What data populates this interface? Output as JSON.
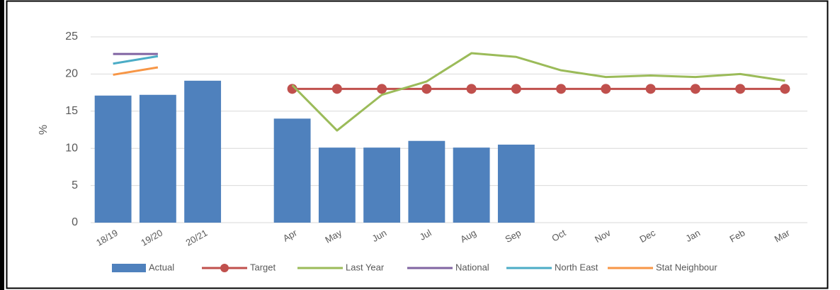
{
  "chart_data": {
    "type": "bar",
    "y_label": "%",
    "categories": [
      "18/19",
      "19/20",
      "20/21",
      null,
      "Apr",
      "May",
      "Jun",
      "Jul",
      "Aug",
      "Sep",
      "Oct",
      "Nov",
      "Dec",
      "Jan",
      "Feb",
      "Mar"
    ],
    "ylim": [
      0,
      25
    ],
    "yticks": [
      0,
      5,
      10,
      15,
      20,
      25
    ],
    "grid": true,
    "legend": "bottom",
    "series": [
      {
        "name": "Actual",
        "type": "bar",
        "color": "#4f81bd",
        "values": [
          17.1,
          17.2,
          19.1,
          null,
          14.0,
          10.1,
          10.1,
          11.0,
          10.1,
          10.5,
          null,
          null,
          null,
          null,
          null,
          null
        ]
      },
      {
        "name": "Target",
        "type": "line",
        "marker": true,
        "color": "#c0504d",
        "values": [
          null,
          null,
          null,
          null,
          18,
          18,
          18,
          18,
          18,
          18,
          18,
          18,
          18,
          18,
          18,
          18
        ]
      },
      {
        "name": "Last Year",
        "type": "line",
        "marker": false,
        "color": "#9bbb59",
        "values": [
          null,
          null,
          null,
          null,
          18.5,
          12.4,
          17.2,
          19.0,
          22.8,
          22.3,
          20.5,
          19.6,
          19.8,
          19.6,
          20.0,
          19.1
        ]
      },
      {
        "name": "National",
        "type": "line",
        "marker": false,
        "color": "#8064a2",
        "values": [
          22.7,
          22.7,
          null,
          null,
          null,
          null,
          null,
          null,
          null,
          null,
          null,
          null,
          null,
          null,
          null,
          null
        ]
      },
      {
        "name": "North East",
        "type": "line",
        "marker": false,
        "color": "#4bacc6",
        "values": [
          21.4,
          22.4,
          null,
          null,
          null,
          null,
          null,
          null,
          null,
          null,
          null,
          null,
          null,
          null,
          null,
          null
        ]
      },
      {
        "name": "Stat Neighbour",
        "type": "line",
        "marker": false,
        "color": "#f79646",
        "values": [
          19.9,
          20.9,
          null,
          null,
          null,
          null,
          null,
          null,
          null,
          null,
          null,
          null,
          null,
          null,
          null,
          null
        ]
      }
    ]
  }
}
